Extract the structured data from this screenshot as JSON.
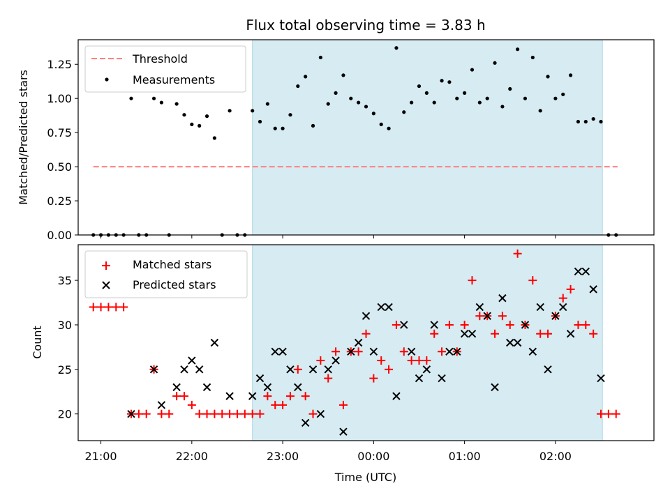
{
  "colors": {
    "shade": "#add8e6",
    "threshold": "#ff7f7f",
    "matched": "#ff0000",
    "predicted": "#000000",
    "measurement": "#000000"
  },
  "chart_data": [
    {
      "type": "scatter",
      "title": "Flux total observing time = 3.83 h",
      "xlabel": "",
      "ylabel": "Matched/Predicted stars",
      "xlim": [
        "20:45",
        "03:05"
      ],
      "ylim": [
        0,
        1.43
      ],
      "x_ticks": [
        "21:00",
        "22:00",
        "23:00",
        "00:00",
        "01:00",
        "02:00"
      ],
      "y_ticks": [
        "0.00",
        "0.25",
        "0.50",
        "0.75",
        "1.00",
        "1.25"
      ],
      "y_tick_values": [
        0,
        0.25,
        0.5,
        0.75,
        1.0,
        1.25
      ],
      "shaded_span": [
        "22:40",
        "02:31"
      ],
      "legend_position": "upper-left",
      "threshold": {
        "name": "Threshold",
        "value": 0.5,
        "x_range": [
          "20:55",
          "02:41"
        ]
      },
      "series": [
        {
          "name": "Measurements",
          "x": [
            "20:55",
            "20:60",
            "21:05",
            "21:10",
            "21:15",
            "21:20",
            "21:25",
            "21:30",
            "21:35",
            "21:40",
            "21:45",
            "21:50",
            "21:55",
            "22:00",
            "22:05",
            "22:10",
            "22:15",
            "22:20",
            "22:25",
            "22:30",
            "22:35",
            "22:40",
            "22:45",
            "22:50",
            "22:55",
            "23:00",
            "23:05",
            "23:10",
            "23:15",
            "23:20",
            "23:25",
            "23:30",
            "23:35",
            "23:40",
            "23:45",
            "23:50",
            "23:55",
            "24:00",
            "24:05",
            "24:10",
            "24:15",
            "24:20",
            "24:25",
            "24:30",
            "24:35",
            "24:40",
            "24:45",
            "24:50",
            "24:55",
            "25:00",
            "25:05",
            "25:10",
            "25:15",
            "25:20",
            "25:25",
            "25:30",
            "25:35",
            "25:40",
            "25:45",
            "25:50",
            "25:55",
            "26:00",
            "26:05",
            "26:10",
            "26:15",
            "26:20",
            "26:25",
            "26:30",
            "26:35",
            "26:40"
          ],
          "y": [
            0,
            0,
            0,
            0,
            0,
            1.0,
            0,
            0,
            1.0,
            0.97,
            0,
            0.96,
            0.88,
            0.81,
            0.8,
            0.87,
            0.71,
            0,
            0.91,
            0,
            0,
            0.91,
            0.83,
            0.96,
            0.78,
            0.78,
            0.88,
            1.09,
            1.16,
            0.8,
            1.3,
            0.96,
            1.04,
            1.17,
            1.0,
            0.97,
            0.94,
            0.89,
            0.81,
            0.78,
            1.37,
            0.9,
            0.97,
            1.09,
            1.04,
            0.97,
            1.13,
            1.12,
            1.0,
            1.04,
            1.21,
            0.97,
            1.0,
            1.26,
            0.94,
            1.07,
            1.36,
            1.0,
            1.3,
            0.91,
            1.16,
            1.0,
            1.03,
            1.17,
            0.83,
            0.83,
            0.85,
            0.83,
            0,
            0
          ]
        }
      ]
    },
    {
      "type": "scatter",
      "title": "",
      "xlabel": "Time (UTC)",
      "ylabel": "Count",
      "xlim": [
        "20:45",
        "03:05"
      ],
      "ylim": [
        17,
        39
      ],
      "x_ticks": [
        "21:00",
        "22:00",
        "23:00",
        "00:00",
        "01:00",
        "02:00"
      ],
      "y_ticks": [
        "20",
        "25",
        "30",
        "35"
      ],
      "y_tick_values": [
        20,
        25,
        30,
        35
      ],
      "shaded_span": [
        "22:40",
        "02:31"
      ],
      "legend_position": "upper-left",
      "series": [
        {
          "name": "Matched stars",
          "x": [
            "20:55",
            "20:60",
            "21:05",
            "21:10",
            "21:15",
            "21:20",
            "21:25",
            "21:30",
            "21:35",
            "21:40",
            "21:45",
            "21:50",
            "21:55",
            "22:00",
            "22:05",
            "22:10",
            "22:15",
            "22:20",
            "22:25",
            "22:30",
            "22:35",
            "22:40",
            "22:45",
            "22:50",
            "22:55",
            "23:00",
            "23:05",
            "23:10",
            "23:15",
            "23:20",
            "23:25",
            "23:30",
            "23:35",
            "23:40",
            "23:45",
            "23:50",
            "23:55",
            "24:00",
            "24:05",
            "24:10",
            "24:15",
            "24:20",
            "24:25",
            "24:30",
            "24:35",
            "24:40",
            "24:45",
            "24:50",
            "24:55",
            "25:00",
            "25:05",
            "25:10",
            "25:15",
            "25:20",
            "25:25",
            "25:30",
            "25:35",
            "25:40",
            "25:45",
            "25:50",
            "25:55",
            "26:00",
            "26:05",
            "26:10",
            "26:15",
            "26:20",
            "26:25",
            "26:30",
            "26:35",
            "26:40"
          ],
          "y": [
            32,
            32,
            32,
            32,
            32,
            20,
            20,
            20,
            25,
            20,
            20,
            22,
            22,
            21,
            20,
            20,
            20,
            20,
            20,
            20,
            20,
            20,
            20,
            22,
            21,
            21,
            22,
            25,
            22,
            20,
            26,
            24,
            27,
            21,
            27,
            27,
            29,
            24,
            26,
            25,
            30,
            27,
            26,
            26,
            26,
            29,
            27,
            30,
            27,
            30,
            35,
            31,
            31,
            29,
            31,
            30,
            38,
            30,
            35,
            29,
            29,
            31,
            33,
            34,
            30,
            30,
            29,
            20,
            20,
            20
          ]
        },
        {
          "name": "Predicted stars",
          "x": [
            "21:20",
            "21:35",
            "21:40",
            "21:50",
            "21:55",
            "22:00",
            "22:05",
            "22:10",
            "22:15",
            "22:25",
            "22:40",
            "22:45",
            "22:50",
            "22:55",
            "23:00",
            "23:05",
            "23:10",
            "23:15",
            "23:20",
            "23:25",
            "23:30",
            "23:35",
            "23:40",
            "23:45",
            "23:50",
            "23:55",
            "24:00",
            "24:05",
            "24:10",
            "24:15",
            "24:20",
            "24:25",
            "24:30",
            "24:35",
            "24:40",
            "24:45",
            "24:50",
            "24:55",
            "25:00",
            "25:05",
            "25:10",
            "25:15",
            "25:20",
            "25:25",
            "25:30",
            "25:35",
            "25:40",
            "25:45",
            "25:50",
            "25:55",
            "26:00",
            "26:05",
            "26:10",
            "26:15",
            "26:20",
            "26:25",
            "26:30"
          ],
          "y": [
            20,
            25,
            21,
            23,
            25,
            26,
            25,
            23,
            28,
            22,
            22,
            24,
            23,
            27,
            27,
            25,
            23,
            19,
            25,
            20,
            25,
            26,
            18,
            27,
            28,
            31,
            27,
            32,
            32,
            22,
            30,
            27,
            24,
            25,
            30,
            24,
            27,
            27,
            29,
            29,
            32,
            31,
            23,
            33,
            28,
            28,
            30,
            27,
            32,
            25,
            31,
            32,
            29,
            36,
            36,
            34,
            24
          ]
        }
      ]
    }
  ]
}
